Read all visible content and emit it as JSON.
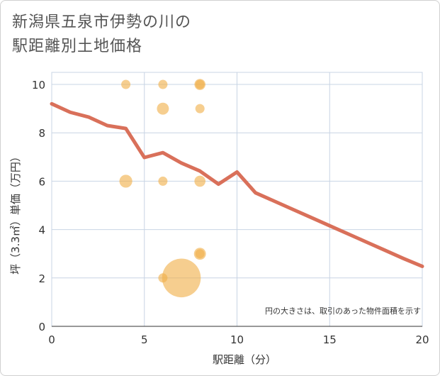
{
  "title_lines": [
    "新潟県五泉市伊勢の川の",
    "駅距離別土地価格"
  ],
  "chart_data": {
    "type": "scatter+line",
    "xlabel": "駅距離（分）",
    "ylabel": "坪（3.3㎡）単価（万円）",
    "xlim": [
      0,
      20
    ],
    "ylim": [
      0,
      10.5
    ],
    "xticks": [
      0,
      5,
      10,
      15,
      20
    ],
    "yticks": [
      0,
      2,
      4,
      6,
      8,
      10
    ],
    "grid": true,
    "note": "円の大きさは、取引のあった物件面積を示す",
    "colors": {
      "bubble": "#f0b04a",
      "line": "#d9705a",
      "grid": "#c8d4e4"
    },
    "bubbles": [
      {
        "x": 4,
        "y": 10,
        "size": 1
      },
      {
        "x": 6,
        "y": 10,
        "size": 1
      },
      {
        "x": 8,
        "y": 10,
        "size": 1.2
      },
      {
        "x": 8,
        "y": 10,
        "size": 1
      },
      {
        "x": 6,
        "y": 9,
        "size": 1.3
      },
      {
        "x": 8,
        "y": 9,
        "size": 1
      },
      {
        "x": 4,
        "y": 6,
        "size": 1.4
      },
      {
        "x": 6,
        "y": 6,
        "size": 1
      },
      {
        "x": 8,
        "y": 6,
        "size": 1.2
      },
      {
        "x": 8,
        "y": 3,
        "size": 1.3
      },
      {
        "x": 8,
        "y": 3,
        "size": 1
      },
      {
        "x": 6,
        "y": 2,
        "size": 1
      },
      {
        "x": 7,
        "y": 2,
        "size": 4.2
      }
    ],
    "line": {
      "x": [
        0,
        1,
        2,
        3,
        4,
        5,
        6,
        7,
        8,
        9,
        10,
        11,
        12,
        13,
        14,
        15,
        16,
        17,
        18,
        19,
        20
      ],
      "y": [
        9.2,
        8.85,
        8.65,
        8.3,
        8.18,
        6.98,
        7.18,
        6.75,
        6.42,
        5.88,
        6.38,
        5.52,
        5.18,
        4.84,
        4.5,
        4.16,
        3.82,
        3.48,
        3.14,
        2.8,
        2.48
      ]
    }
  }
}
